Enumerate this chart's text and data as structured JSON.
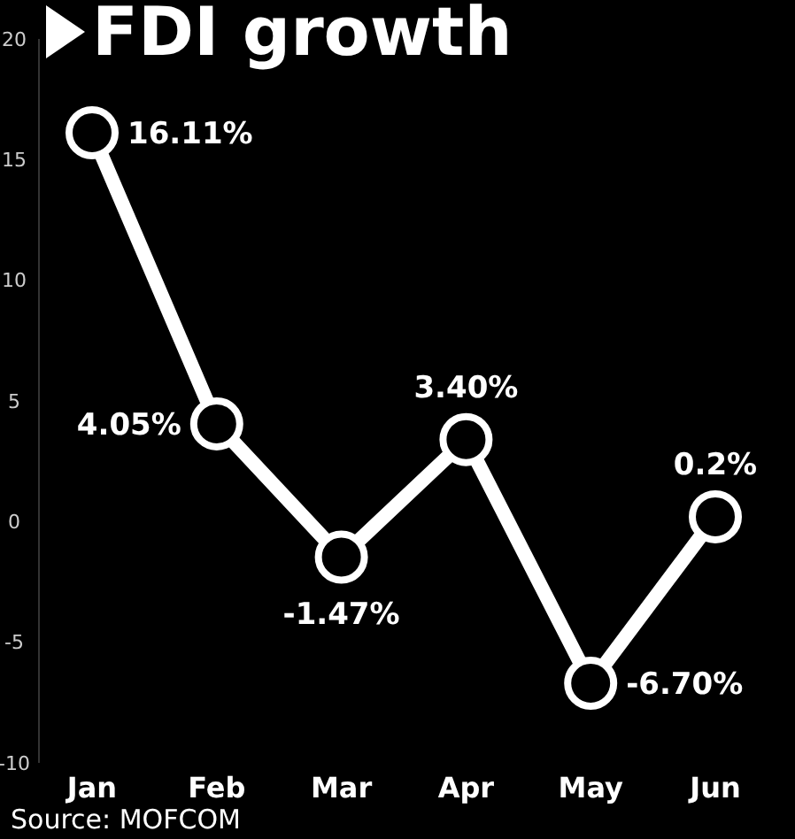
{
  "chart_data": {
    "type": "line",
    "title": "FDI growth",
    "categories": [
      "Jan",
      "Feb",
      "Mar",
      "Apr",
      "May",
      "Jun"
    ],
    "series": [
      {
        "color": "#ffffff",
        "values": [
          16.11,
          4.05,
          -1.47,
          3.4,
          -6.7,
          0.2
        ],
        "value_labels": [
          "16.11%",
          "4.05%",
          "-1.47%",
          "3.40%",
          "-6.70%",
          "0.2%"
        ]
      }
    ],
    "ylim": [
      -10,
      20
    ],
    "yticks": [
      -10,
      -5,
      0,
      5,
      10,
      15,
      20
    ],
    "grid": false,
    "legend": false,
    "marker": "circle",
    "line_style": "solid",
    "annotations": [
      "Source: MOFCOM"
    ]
  }
}
